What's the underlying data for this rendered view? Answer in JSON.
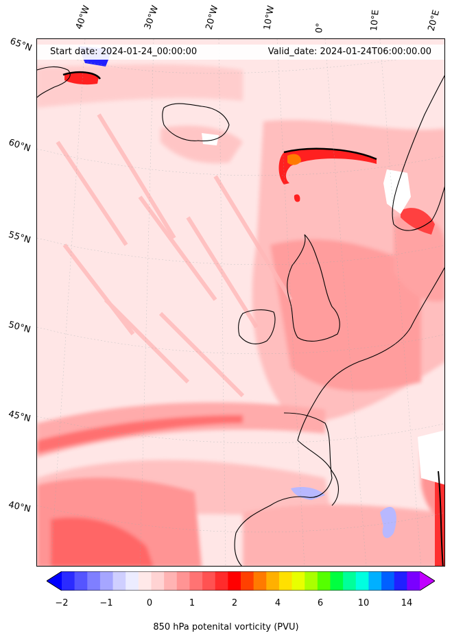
{
  "header": {
    "start_date": "Start date: 2024-01-24_00:00:00",
    "valid_date": "Valid_date: 2024-01-24T06:00:00.00"
  },
  "lon_labels": [
    "40°W",
    "30°W",
    "20°W",
    "10°W",
    "0°",
    "10°E",
    "20°E"
  ],
  "lat_labels": [
    "65°N",
    "60°N",
    "55°N",
    "50°N",
    "45°N",
    "40°N"
  ],
  "colorbar": {
    "title": "850 hPa potenital vorticity (PVU)",
    "tick_labels": [
      "−2",
      "−1",
      "0",
      "1",
      "2",
      "4",
      "6",
      "10",
      "14"
    ],
    "colors": [
      "#0000ff",
      "#2b2bff",
      "#5555ff",
      "#7f7fff",
      "#a6a6ff",
      "#cfcfff",
      "#ececff",
      "#ffe9e9",
      "#ffd3d3",
      "#ffb3b3",
      "#ff9494",
      "#ff7373",
      "#ff5252",
      "#ff2b2b",
      "#ff0000",
      "#ff4000",
      "#ff7a00",
      "#ffb000",
      "#ffe000",
      "#e8ff00",
      "#aaff00",
      "#55ff00",
      "#00ff40",
      "#00ff9a",
      "#00ffe0",
      "#00b0ff",
      "#0060ff",
      "#2020ff",
      "#7a00ff",
      "#c000ff"
    ]
  }
}
